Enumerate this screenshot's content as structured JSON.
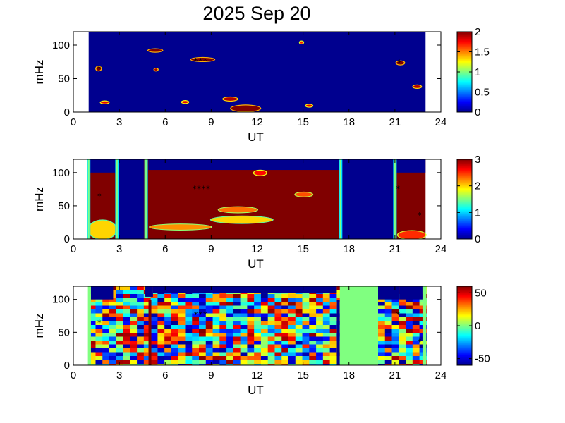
{
  "figure": {
    "title": "2025 Sep 20",
    "colormap": "jet",
    "colors": {
      "low": "#00008f",
      "high": "#800000",
      "nodata": "#80ff80",
      "marker": "#000000",
      "spike": "#ff0000"
    }
  },
  "chart_data": [
    {
      "type": "heatmap",
      "title": "2025 Sep 20",
      "xlabel": "UT",
      "ylabel": "mHz",
      "xlim": [
        0,
        24
      ],
      "ylim": [
        0,
        120
      ],
      "xticks": [
        0,
        3,
        6,
        9,
        12,
        15,
        18,
        21,
        24
      ],
      "yticks": [
        0,
        50,
        100
      ],
      "data_time_range": [
        1.0,
        23.0
      ],
      "colorbar": {
        "range": [
          0,
          2
        ],
        "ticks": [
          0,
          0.5,
          1,
          1.5,
          2
        ],
        "labels": [
          "0",
          "0.5",
          "1",
          "1.5",
          "2"
        ]
      },
      "background_value": 0,
      "features": [
        {
          "ut": [
            1.5,
            1.8
          ],
          "mhz": [
            62,
            68
          ],
          "value": 2
        },
        {
          "ut": [
            1.8,
            2.3
          ],
          "mhz": [
            13,
            16
          ],
          "value": 1.8
        },
        {
          "ut": [
            4.9,
            5.8
          ],
          "mhz": [
            90,
            94
          ],
          "value": 2
        },
        {
          "ut": [
            5.3,
            5.5
          ],
          "mhz": [
            62,
            65
          ],
          "value": 1.9
        },
        {
          "ut": [
            7.7,
            9.2
          ],
          "mhz": [
            76,
            81
          ],
          "value": 2
        },
        {
          "ut": [
            7.1,
            7.5
          ],
          "mhz": [
            14,
            16
          ],
          "value": 1.8
        },
        {
          "ut": [
            9.8,
            10.7
          ],
          "mhz": [
            17,
            22
          ],
          "value": 1.9
        },
        {
          "ut": [
            10.3,
            12.2
          ],
          "mhz": [
            1,
            10
          ],
          "value": 2
        },
        {
          "ut": [
            14.8,
            15.0
          ],
          "mhz": [
            103,
            105
          ],
          "value": 1.7
        },
        {
          "ut": [
            15.2,
            15.6
          ],
          "mhz": [
            8,
            11
          ],
          "value": 1.8
        },
        {
          "ut": [
            21.1,
            21.6
          ],
          "mhz": [
            71,
            76
          ],
          "value": 2
        },
        {
          "ut": [
            22.2,
            22.7
          ],
          "mhz": [
            36,
            40
          ],
          "value": 1.9
        }
      ],
      "markers": [
        {
          "ut": 1.7,
          "mhz": 65
        },
        {
          "ut": 8.0,
          "mhz": 77
        },
        {
          "ut": 8.3,
          "mhz": 77
        },
        {
          "ut": 8.6,
          "mhz": 77
        },
        {
          "ut": 21.3,
          "mhz": 74
        }
      ]
    },
    {
      "type": "heatmap",
      "xlabel": "UT",
      "ylabel": "mHz",
      "xlim": [
        0,
        24
      ],
      "ylim": [
        0,
        120
      ],
      "xticks": [
        0,
        3,
        6,
        9,
        12,
        15,
        18,
        21,
        24
      ],
      "yticks": [
        0,
        50,
        100
      ],
      "data_time_range": [
        1.0,
        23.0
      ],
      "colorbar": {
        "range": [
          0,
          3
        ],
        "ticks": [
          0,
          1,
          2,
          3
        ],
        "labels": [
          "0",
          "1",
          "2",
          "3"
        ]
      },
      "background_value": 3,
      "low_blocks": [
        {
          "ut": [
            1.0,
            2.8
          ],
          "mhz": [
            100,
            120
          ]
        },
        {
          "ut": [
            2.95,
            4.6
          ],
          "mhz": [
            0,
            120
          ]
        },
        {
          "ut": [
            4.9,
            17.4
          ],
          "mhz": [
            104,
            120
          ]
        },
        {
          "ut": [
            17.5,
            20.9
          ],
          "mhz": [
            0,
            120
          ]
        },
        {
          "ut": [
            21.1,
            23.0
          ],
          "mhz": [
            100,
            120
          ]
        }
      ],
      "boundary_lines": [
        1.0,
        2.85,
        4.75,
        17.45,
        21.0
      ],
      "features": [
        {
          "ut": [
            1.0,
            2.8
          ],
          "mhz": [
            0,
            28
          ],
          "value": 2.0
        },
        {
          "ut": [
            5.0,
            9.0
          ],
          "mhz": [
            14,
            22
          ],
          "value": 2.2
        },
        {
          "ut": [
            9.0,
            13.0
          ],
          "mhz": [
            24,
            34
          ],
          "value": 2.0
        },
        {
          "ut": [
            9.5,
            12.0
          ],
          "mhz": [
            40,
            48
          ],
          "value": 2.3
        },
        {
          "ut": [
            11.8,
            12.6
          ],
          "mhz": [
            96,
            103
          ],
          "value": 2.6
        },
        {
          "ut": [
            14.5,
            15.6
          ],
          "mhz": [
            64,
            70
          ],
          "value": 2.4
        },
        {
          "ut": [
            21.2,
            23.0
          ],
          "mhz": [
            0,
            12
          ],
          "value": 2.5
        }
      ],
      "markers": [
        {
          "ut": 1.7,
          "mhz": 65
        },
        {
          "ut": 7.9,
          "mhz": 76
        },
        {
          "ut": 8.2,
          "mhz": 76
        },
        {
          "ut": 8.5,
          "mhz": 76
        },
        {
          "ut": 8.8,
          "mhz": 76
        },
        {
          "ut": 21.2,
          "mhz": 76
        },
        {
          "ut": 22.6,
          "mhz": 36
        }
      ]
    },
    {
      "type": "heatmap",
      "xlabel": "UT",
      "ylabel": "mHz",
      "xlim": [
        0,
        24
      ],
      "ylim": [
        0,
        120
      ],
      "xticks": [
        0,
        3,
        6,
        9,
        12,
        15,
        18,
        21,
        24
      ],
      "yticks": [
        0,
        50,
        100
      ],
      "data_time_range": [
        1.0,
        23.0
      ],
      "colorbar": {
        "range": [
          -60,
          60
        ],
        "ticks": [
          -50,
          0,
          50
        ],
        "labels": [
          "-50",
          "0",
          "50"
        ]
      },
      "background_value": 0,
      "nodata_ranges": [
        {
          "ut": [
            0.95,
            1.15
          ]
        },
        {
          "ut": [
            17.4,
            19.9
          ]
        },
        {
          "ut": [
            22.8,
            23.05
          ]
        }
      ],
      "low_blocks": [
        {
          "ut": [
            1.15,
            2.6
          ],
          "mhz": [
            100,
            120
          ]
        },
        {
          "ut": [
            4.7,
            5.2
          ],
          "mhz": [
            104,
            120
          ]
        },
        {
          "ut": [
            5.2,
            17.2
          ],
          "mhz": [
            110,
            120
          ]
        },
        {
          "ut": [
            19.9,
            21.3
          ],
          "mhz": [
            100,
            120
          ]
        },
        {
          "ut": [
            21.3,
            22.8
          ],
          "mhz": [
            100,
            120
          ]
        }
      ],
      "spikes": [
        {
          "ut": 5.0,
          "value": 60
        },
        {
          "ut": 17.3,
          "value": -60
        }
      ],
      "markers": [
        {
          "ut": 1.7,
          "mhz": 65
        },
        {
          "ut": 8.0,
          "mhz": 77
        },
        {
          "ut": 8.3,
          "mhz": 77
        },
        {
          "ut": 8.6,
          "mhz": 77
        },
        {
          "ut": 21.2,
          "mhz": 77
        },
        {
          "ut": 22.6,
          "mhz": 36
        }
      ]
    }
  ]
}
